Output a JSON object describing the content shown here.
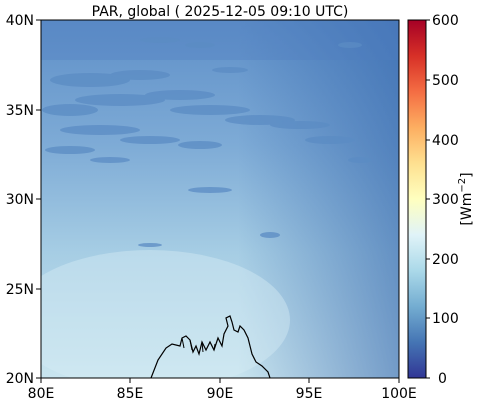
{
  "figure": {
    "title": "PAR, global ( 2025-12-05 09:10 UTC)",
    "variable": "PAR",
    "scope": "global",
    "timestamp": "2025-12-05 09:10 UTC"
  },
  "map": {
    "lon_range": [
      80,
      100
    ],
    "lat_range": [
      20,
      40
    ],
    "x_ticks": [
      "80E",
      "85E",
      "90E",
      "95E",
      "100E"
    ],
    "y_ticks": [
      "40N",
      "35N",
      "30N",
      "25N",
      "20N"
    ],
    "coastline": "black"
  },
  "colorbar": {
    "label": "[Wm",
    "label_superscript": "−2",
    "label_close": "]",
    "ticks": [
      "600",
      "500",
      "400",
      "300",
      "200",
      "100",
      "0"
    ],
    "range": [
      0,
      600
    ],
    "colormap": "RdYlBu_r",
    "colors": [
      "#313695",
      "#4575b4",
      "#74add1",
      "#abd9e9",
      "#e0f3f8",
      "#ffffbf",
      "#fee090",
      "#fdae61",
      "#f46d43",
      "#d73027",
      "#a50026"
    ]
  },
  "field_colors": {
    "low_high_lat": "#4a78b8",
    "mid": "#7aa8d4",
    "south": "#c6e2ee",
    "cloud": "#5d8fc6"
  }
}
